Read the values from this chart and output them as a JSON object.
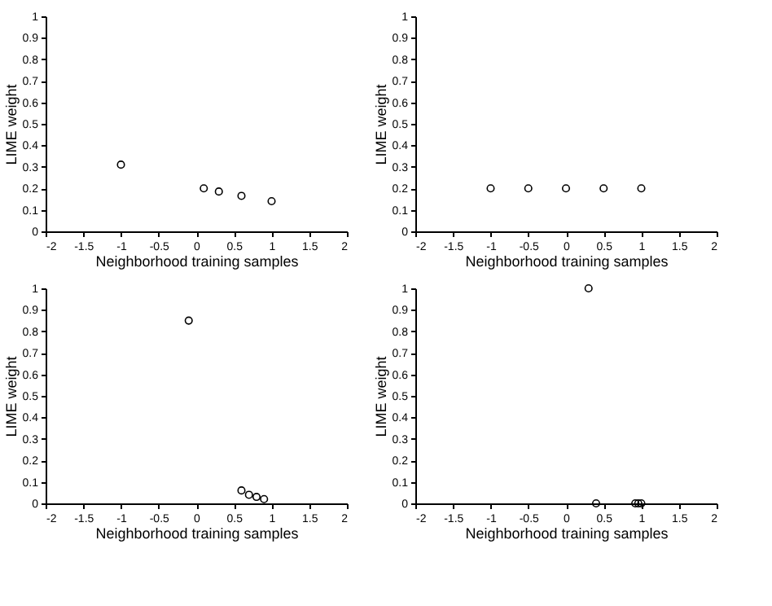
{
  "chart_data": [
    {
      "type": "scatter",
      "xlabel": "Neighborhood training samples",
      "ylabel": "LIME weight",
      "marker": "circle",
      "grid": false,
      "xlim": [
        -2,
        2
      ],
      "ylim": [
        0,
        1
      ],
      "xticks": [
        -2,
        -1.5,
        -1,
        -0.5,
        0,
        0.5,
        1,
        1.5,
        2
      ],
      "yticks": [
        0,
        0.1,
        0.2,
        0.3,
        0.4,
        0.5,
        0.6,
        0.7,
        0.8,
        0.9,
        1
      ],
      "series": [
        {
          "color": "#000000",
          "x": [
            -1,
            0.1,
            0.3,
            0.6,
            1.0
          ],
          "values": [
            0.31,
            0.2,
            0.185,
            0.165,
            0.14
          ]
        }
      ]
    },
    {
      "type": "scatter",
      "xlabel": "Neighborhood training samples",
      "ylabel": "LIME weight",
      "marker": "circle",
      "grid": false,
      "xlim": [
        -2,
        2
      ],
      "ylim": [
        0,
        1
      ],
      "xticks": [
        -2,
        -1.5,
        -1,
        -0.5,
        0,
        0.5,
        1,
        1.5,
        2
      ],
      "yticks": [
        0,
        0.1,
        0.2,
        0.3,
        0.4,
        0.5,
        0.6,
        0.7,
        0.8,
        0.9,
        1
      ],
      "series": [
        {
          "color": "#000000",
          "x": [
            -1,
            -0.5,
            0,
            0.5,
            1
          ],
          "values": [
            0.2,
            0.2,
            0.2,
            0.2,
            0.2
          ]
        }
      ]
    },
    {
      "type": "scatter",
      "xlabel": "Neighborhood training samples",
      "ylabel": "LIME weight",
      "marker": "circle",
      "grid": false,
      "xlim": [
        -2,
        2
      ],
      "ylim": [
        0,
        1
      ],
      "xticks": [
        -2,
        -1.5,
        -1,
        -0.5,
        0,
        0.5,
        1,
        1.5,
        2
      ],
      "yticks": [
        0,
        0.1,
        0.2,
        0.3,
        0.4,
        0.5,
        0.6,
        0.7,
        0.8,
        0.9,
        1
      ],
      "series": [
        {
          "color": "#000000",
          "x": [
            -0.1,
            0.6,
            0.7,
            0.8,
            0.9
          ],
          "values": [
            0.85,
            0.06,
            0.04,
            0.03,
            0.02
          ]
        }
      ]
    },
    {
      "type": "scatter",
      "xlabel": "Neighborhood training samples",
      "ylabel": "LIME weight",
      "marker": "circle",
      "grid": false,
      "xlim": [
        -2,
        2
      ],
      "ylim": [
        0,
        1
      ],
      "xticks": [
        -2,
        -1.5,
        -1,
        -0.5,
        0,
        0.5,
        1,
        1.5,
        2
      ],
      "yticks": [
        0,
        0.1,
        0.2,
        0.3,
        0.4,
        0.5,
        0.6,
        0.7,
        0.8,
        0.9,
        1
      ],
      "series": [
        {
          "color": "#000000",
          "x": [
            0.3,
            0.4,
            0.92,
            0.96,
            1.0
          ],
          "values": [
            1.0,
            0,
            0,
            0,
            0
          ]
        }
      ]
    }
  ]
}
